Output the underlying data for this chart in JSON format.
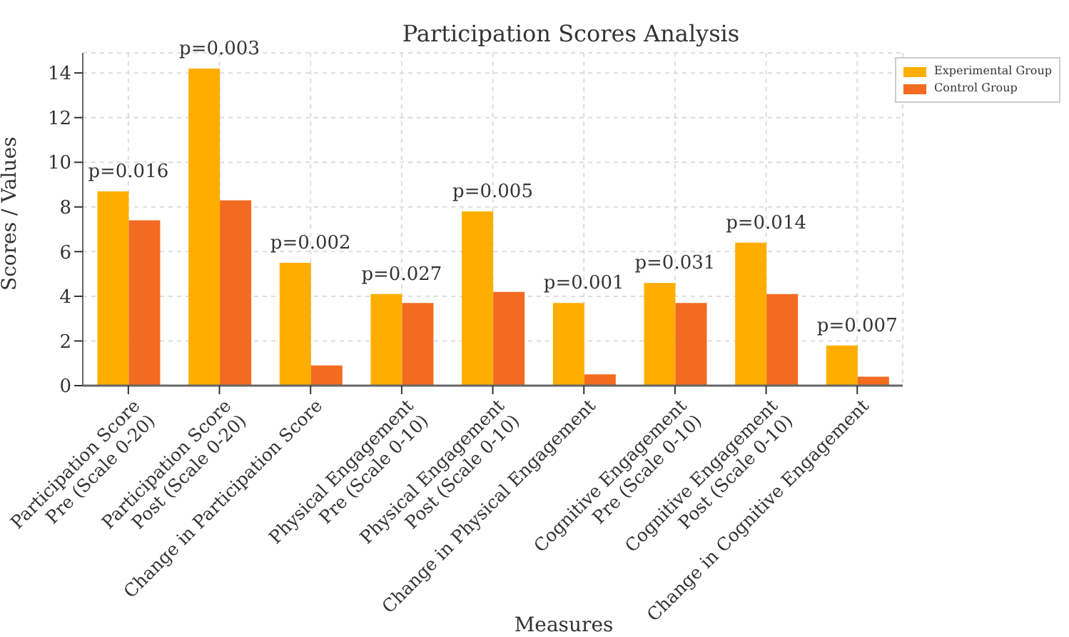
{
  "chart_data": {
    "type": "bar",
    "title": "Participation Scores Analysis",
    "xlabel": "Measures",
    "ylabel": "Scores / Values",
    "categories": [
      "Participation Score\nPre (Scale 0-20)",
      "Participation Score\nPost (Scale 0-20)",
      "Change in Participation Score",
      "Physical Engagement\nPre (Scale 0-10)",
      "Physical Engagement\nPost (Scale 0-10)",
      "Change in Physical Engagement",
      "Cognitive Engagement\nPre (Scale 0-10)",
      "Cognitive Engagement\nPost (Scale 0-10)",
      "Change in Cognitive Engagement"
    ],
    "series": [
      {
        "name": "Experimental Group",
        "color": "#ffae00",
        "values": [
          8.7,
          14.2,
          5.5,
          4.1,
          7.8,
          3.7,
          4.6,
          6.4,
          1.8
        ]
      },
      {
        "name": "Control Group",
        "color": "#f26b21",
        "values": [
          7.4,
          8.3,
          0.9,
          3.7,
          4.2,
          0.5,
          3.7,
          4.1,
          0.4
        ]
      }
    ],
    "ylim": [
      0,
      14.9
    ],
    "yticks": [
      0,
      2,
      4,
      6,
      8,
      10,
      12,
      14
    ],
    "grid": true,
    "legend": "top right",
    "annotations": [
      "p=0.016",
      "p=0.003",
      "p=0.002",
      "p=0.027",
      "p=0.005",
      "p=0.001",
      "p=0.031",
      "p=0.014",
      "p=0.007"
    ]
  }
}
